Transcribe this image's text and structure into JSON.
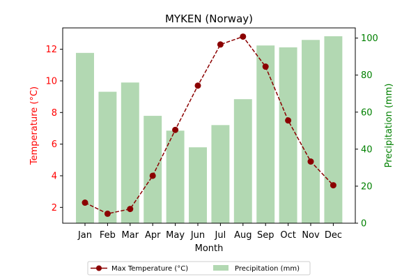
{
  "chart_data": {
    "type": "bar+line",
    "title": "MYKEN (Norway)",
    "xlabel": "Month",
    "categories": [
      "Jan",
      "Feb",
      "Mar",
      "Apr",
      "May",
      "Jun",
      "Jul",
      "Aug",
      "Sep",
      "Oct",
      "Nov",
      "Dec"
    ],
    "left_axis": {
      "label": "Temperature (°C)",
      "color": "#ff0000",
      "ylim": [
        1.0,
        13.35
      ],
      "ticks": [
        2,
        4,
        6,
        8,
        10,
        12
      ]
    },
    "right_axis": {
      "label": "Precipitation (mm)",
      "color": "#008000",
      "ylim": [
        0,
        105.5
      ],
      "ticks": [
        0,
        20,
        40,
        60,
        80,
        100
      ]
    },
    "series": [
      {
        "name": "Max Temperature (°C)",
        "kind": "line",
        "axis": "left",
        "color": "#8b0000",
        "line_style": "dashed",
        "marker": "circle",
        "values": [
          2.3,
          1.6,
          1.9,
          4.0,
          6.9,
          9.7,
          12.3,
          12.8,
          10.9,
          7.5,
          4.9,
          3.4
        ]
      },
      {
        "name": "Precipitation (mm)",
        "kind": "bar",
        "axis": "right",
        "color": "#b2d8b2",
        "values": [
          92,
          71,
          76,
          58,
          50,
          41,
          53,
          67,
          96,
          95,
          99,
          101
        ]
      }
    ],
    "legend": {
      "position": "bottom-center",
      "columns": 2
    },
    "grid": false
  }
}
